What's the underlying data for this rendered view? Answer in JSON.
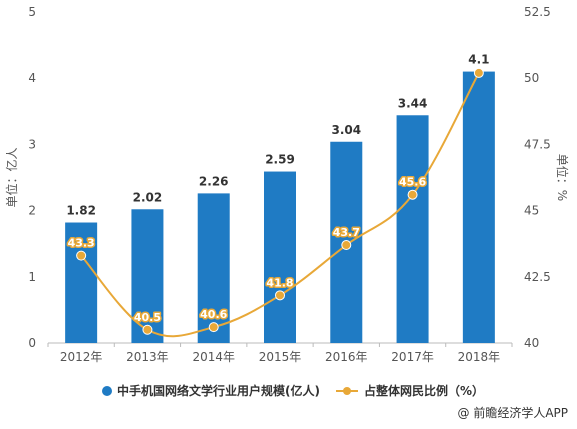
{
  "chart_data": {
    "type": "bar",
    "categories": [
      "2012年",
      "2013年",
      "2014年",
      "2015年",
      "2016年",
      "2017年",
      "2018年"
    ],
    "series": [
      {
        "name": "中手机国网络文学行业用户规模(亿人)",
        "type": "bar",
        "axis": "left",
        "values": [
          1.82,
          2.02,
          2.26,
          2.59,
          3.04,
          3.44,
          4.1
        ]
      },
      {
        "name": "占整体网民比例（%）",
        "type": "line",
        "axis": "right",
        "values": [
          43.3,
          40.5,
          40.6,
          41.8,
          43.7,
          45.6,
          50.2
        ]
      }
    ],
    "value_labels_line": [
      "43.3",
      "40.5",
      "40.6",
      "41.8",
      "43.7",
      "45.6",
      ""
    ],
    "ylabel": "单位：亿人",
    "y2label": "单位：%",
    "ylim": [
      0,
      5
    ],
    "y2lim": [
      40,
      52.5
    ],
    "yticks": [
      "0",
      "1",
      "2",
      "3",
      "4",
      "5"
    ],
    "y2ticks": [
      "40",
      "42.5",
      "45",
      "47.5",
      "50",
      "52.5"
    ],
    "legend_position": "bottom",
    "colors": {
      "bar": "#1f7bc4",
      "line": "#e8a838"
    }
  },
  "source": "@ 前瞻经济学人APP"
}
